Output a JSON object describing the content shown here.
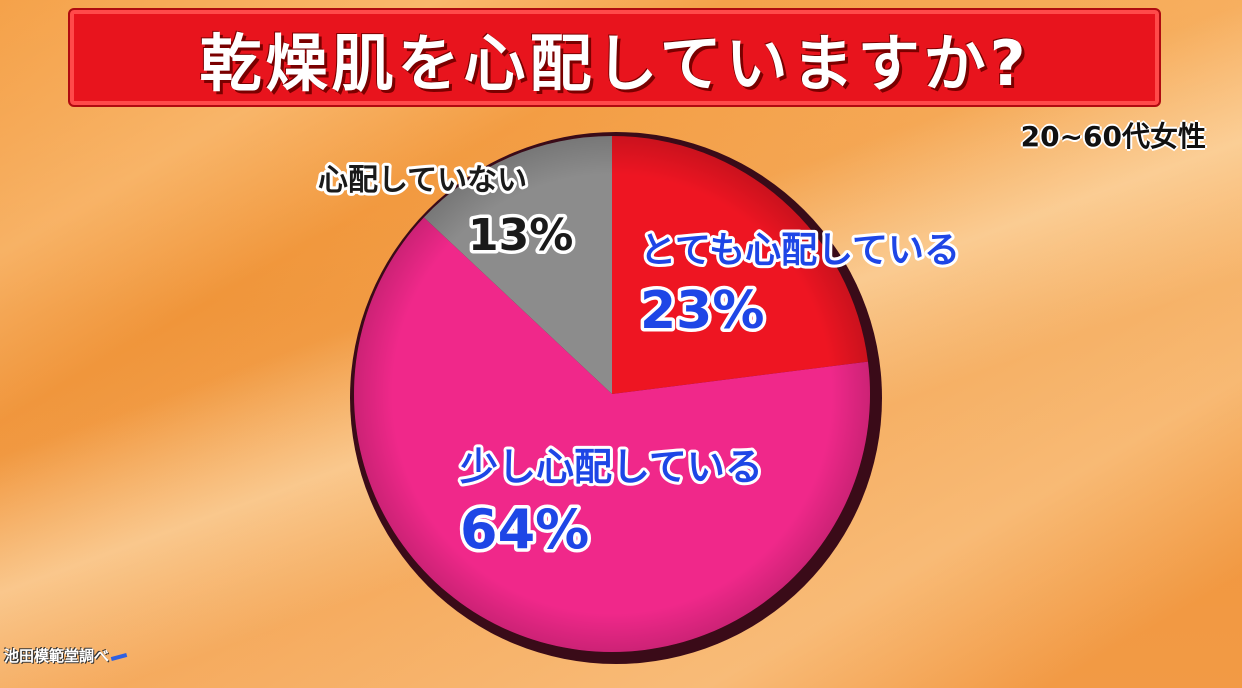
{
  "chart_data": {
    "type": "pie",
    "title": "乾燥肌を心配していますか?",
    "subtitle": "20~60代女性",
    "slices": [
      {
        "label": "とても心配している",
        "value": 23,
        "value_text": "23%",
        "color": "#ee1522"
      },
      {
        "label": "少し心配している",
        "value": 64,
        "value_text": "64%",
        "color": "#f0288a"
      },
      {
        "label": "心配していない",
        "value": 13,
        "value_text": "13%",
        "color": "#8c8c8c"
      }
    ],
    "label_colors": {
      "highlight": "#1e46e6",
      "muted": "#1a1a1a"
    }
  },
  "footer": {
    "source_text": "池田模範堂調べ"
  }
}
